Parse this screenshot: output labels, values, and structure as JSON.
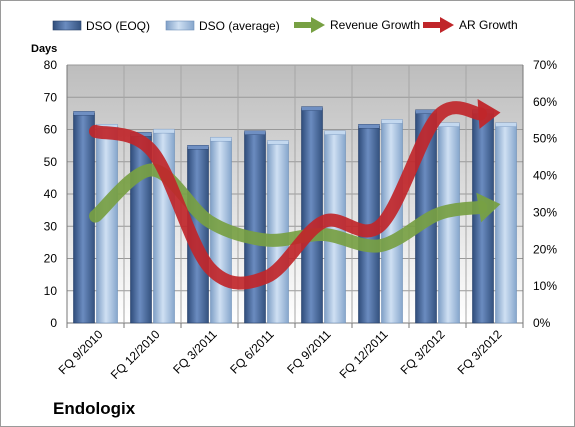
{
  "chart_data": {
    "type": "bar",
    "company": "Endologix",
    "y_left_title": "Days",
    "categories": [
      "FQ 9/2010",
      "FQ 12/2010",
      "FQ 3/2011",
      "FQ 6/2011",
      "FQ 9/2011",
      "FQ 12/2011",
      "FQ 3/2012",
      "FQ 3/2012"
    ],
    "ylim_left": [
      0,
      80
    ],
    "ylim_right": [
      0,
      0.7
    ],
    "y_left_ticks": [
      "0",
      "10",
      "20",
      "30",
      "40",
      "50",
      "60",
      "70",
      "80"
    ],
    "y_right_ticks": [
      "0%",
      "10%",
      "20%",
      "30%",
      "40%",
      "50%",
      "60%",
      "70%"
    ],
    "bar_series": [
      {
        "name": "DSO (EOQ)",
        "color": "#4f6fa0",
        "values": [
          65,
          58.5,
          54.5,
          59,
          66.5,
          61,
          65.5,
          65.5
        ]
      },
      {
        "name": "DSO (average)",
        "color": "#a7c1df",
        "values": [
          61,
          59.5,
          57,
          56,
          59,
          62.5,
          61.5,
          61.5
        ]
      }
    ],
    "line_series": [
      {
        "name": "Revenue Growth",
        "color": "#77a043",
        "axis": "right",
        "values": [
          0.29,
          0.415,
          0.275,
          0.225,
          0.24,
          0.21,
          0.295,
          0.32
        ]
      },
      {
        "name": "AR Growth",
        "color": "#c0262a",
        "axis": "right",
        "values": [
          0.52,
          0.465,
          0.15,
          0.125,
          0.275,
          0.265,
          0.56,
          0.57
        ]
      }
    ],
    "grid": true,
    "legend_position": "top"
  }
}
